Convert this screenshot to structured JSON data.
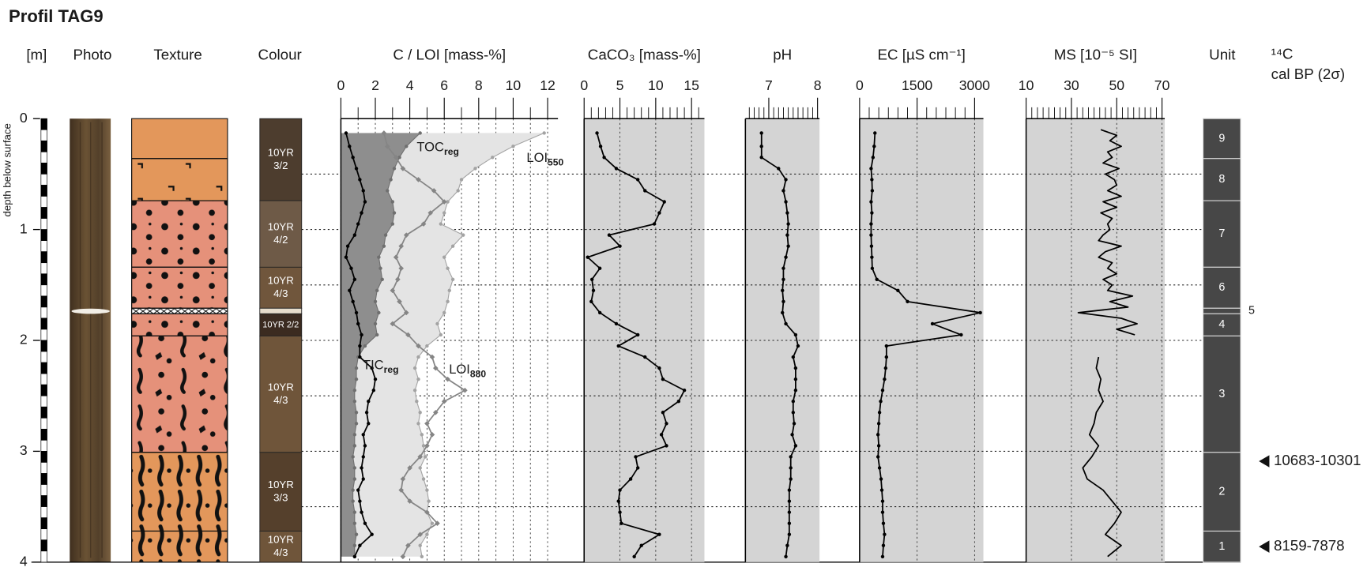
{
  "title": "Profil TAG9",
  "depth_axis": {
    "label": "[m]",
    "axis_label": "depth below surface",
    "ylim": [
      0,
      4
    ],
    "yticks": [
      0,
      1,
      2,
      3,
      4
    ],
    "minor_yticks": [
      0.5,
      1.5,
      2.5,
      3.5
    ]
  },
  "photo": {
    "label": "Photo"
  },
  "texture": {
    "label": "Texture",
    "layers": [
      {
        "top": 0,
        "bottom": 0.36,
        "color": "#e3975b"
      },
      {
        "top": 0.36,
        "bottom": 0.74,
        "color": "#e3975b",
        "pattern": "hooks"
      },
      {
        "top": 0.74,
        "bottom": 1.34,
        "color": "#e5917a",
        "pattern": "dots"
      },
      {
        "top": 1.34,
        "bottom": 1.71,
        "color": "#e5917a",
        "pattern": "dots"
      },
      {
        "top": 1.71,
        "bottom": 1.76,
        "color": "#ffffff",
        "pattern": "hatch"
      },
      {
        "top": 1.76,
        "bottom": 1.96,
        "color": "#e5917a",
        "pattern": "dots"
      },
      {
        "top": 1.96,
        "bottom": 3.01,
        "color": "#e5917a",
        "pattern": "mixed"
      },
      {
        "top": 3.01,
        "bottom": 3.72,
        "color": "#e3975b",
        "pattern": "streaks"
      },
      {
        "top": 3.72,
        "bottom": 4,
        "color": "#e3975b",
        "pattern": "streaks"
      }
    ]
  },
  "colour": {
    "label": "Colour",
    "layers": [
      {
        "top": 0,
        "bottom": 0.74,
        "color": "#4d3d2e",
        "label": [
          "10YR",
          "3/2"
        ]
      },
      {
        "top": 0.74,
        "bottom": 1.34,
        "color": "#6e5a47",
        "label": [
          "10YR",
          "4/2"
        ]
      },
      {
        "top": 1.34,
        "bottom": 1.71,
        "color": "#70563c",
        "label": [
          "10YR",
          "4/3"
        ]
      },
      {
        "top": 1.71,
        "bottom": 1.76,
        "color": "#e6dccb"
      },
      {
        "top": 1.76,
        "bottom": 1.96,
        "color": "#3b2b20",
        "label": [
          "10YR 2/2"
        ]
      },
      {
        "top": 1.96,
        "bottom": 3.01,
        "color": "#6f553a",
        "label": [
          "10YR",
          "4/3"
        ]
      },
      {
        "top": 3.01,
        "bottom": 3.72,
        "color": "#55402c",
        "label": [
          "10YR",
          "3/3"
        ]
      },
      {
        "top": 3.72,
        "bottom": 4,
        "color": "#6f553a",
        "label": [
          "10YR",
          "4/3"
        ]
      }
    ]
  },
  "chart_data": [
    {
      "type": "line",
      "title": "C / LOI [mass-%]",
      "xlim": [
        0,
        12.6
      ],
      "xticks": [
        0,
        2,
        4,
        6,
        8,
        10,
        12
      ],
      "minor_xticks": [
        1,
        3,
        5,
        7,
        9,
        11
      ],
      "grid": true,
      "minor_grid": true,
      "depth": [
        0.13,
        0.25,
        0.35,
        0.45,
        0.55,
        0.65,
        0.75,
        0.85,
        0.95,
        1.05,
        1.15,
        1.25,
        1.35,
        1.45,
        1.55,
        1.65,
        1.75,
        1.85,
        1.95,
        2.05,
        2.15,
        2.25,
        2.35,
        2.45,
        2.55,
        2.65,
        2.75,
        2.85,
        2.95,
        3.05,
        3.15,
        3.25,
        3.35,
        3.45,
        3.55,
        3.65,
        3.75,
        3.85,
        3.95
      ],
      "series": [
        {
          "name": "LOI",
          "subscript": "550",
          "style": "area",
          "color": "#a3a3a3",
          "fill": "#e4e4e4",
          "values": [
            11.8,
            10.0,
            8.8,
            7.8,
            7.0,
            6.8,
            6.2,
            6.0,
            5.8,
            7.1,
            6.5,
            6.0,
            6.2,
            6.5,
            6.3,
            6.2,
            6.0,
            5.6,
            5.8,
            5.0,
            4.5,
            4.3,
            4.5,
            4.3,
            4.4,
            4.6,
            4.5,
            4.7,
            4.8,
            4.9,
            4.6,
            4.8,
            5.0,
            5.1,
            5.0,
            5.3,
            5.0,
            4.6,
            4.7
          ]
        },
        {
          "name": "TOC",
          "subscript": "reg",
          "style": "area",
          "color": "#6f6f6f",
          "fill": "#8e8e8e",
          "values": [
            4.6,
            3.8,
            3.4,
            3.1,
            2.9,
            2.7,
            3.0,
            3.1,
            3.0,
            2.6,
            2.5,
            2.2,
            2.3,
            2.4,
            2.1,
            2.0,
            2.2,
            2.0,
            2.1,
            1.4,
            1.0,
            0.9,
            0.9,
            0.8,
            0.8,
            0.9,
            0.9,
            0.8,
            0.8,
            0.7,
            0.8,
            0.8,
            0.7,
            0.7,
            0.8,
            0.8,
            0.9,
            0.8,
            0.8
          ]
        },
        {
          "name": "LOI",
          "subscript": "880",
          "style": "line",
          "marker": "diamond",
          "color": "#858585",
          "values": [
            2.5,
            2.7,
            3.2,
            3.6,
            4.5,
            5.4,
            6.0,
            5.2,
            4.8,
            3.8,
            3.5,
            3.2,
            3.5,
            3.3,
            3.0,
            3.4,
            3.8,
            3.0,
            3.9,
            4.5,
            5.3,
            5.5,
            6.2,
            7.2,
            6.0,
            5.5,
            5.0,
            5.3,
            5.0,
            4.6,
            4.0,
            3.6,
            3.5,
            4.0,
            5.0,
            5.6,
            4.6,
            3.9,
            3.6
          ]
        },
        {
          "name": "TIC",
          "subscript": "reg",
          "style": "line",
          "color": "#000000",
          "values": [
            0.3,
            0.5,
            0.7,
            0.9,
            1.1,
            1.3,
            1.4,
            1.2,
            1.0,
            0.8,
            0.4,
            0.3,
            0.6,
            0.8,
            0.5,
            0.7,
            0.9,
            1.0,
            1.2,
            1.1,
            1.1,
            1.8,
            2.0,
            1.9,
            1.6,
            1.5,
            1.6,
            1.3,
            1.4,
            1.3,
            1.2,
            1.3,
            1.0,
            1.1,
            1.2,
            1.4,
            1.8,
            1.1,
            0.8
          ]
        }
      ]
    },
    {
      "type": "line",
      "title": "CaCO₃ [mass-%]",
      "xlim": [
        0,
        16.8
      ],
      "xticks": [
        0,
        5,
        10,
        15
      ],
      "minor_xticks": [
        1,
        2,
        3,
        4,
        6,
        7,
        8,
        9,
        11,
        12,
        13,
        14,
        16
      ],
      "grid": true,
      "background": "#d4d4d4",
      "color": "#000000",
      "depth": [
        0.13,
        0.25,
        0.35,
        0.45,
        0.55,
        0.65,
        0.75,
        0.85,
        0.95,
        1.05,
        1.15,
        1.25,
        1.35,
        1.45,
        1.55,
        1.65,
        1.75,
        1.85,
        1.95,
        2.05,
        2.15,
        2.25,
        2.35,
        2.45,
        2.55,
        2.65,
        2.75,
        2.85,
        2.95,
        3.05,
        3.15,
        3.25,
        3.35,
        3.45,
        3.55,
        3.65,
        3.75,
        3.85,
        3.95
      ],
      "values": [
        1.8,
        2.3,
        2.8,
        4.5,
        7.5,
        8.5,
        11.2,
        10.5,
        9.8,
        3.5,
        5.0,
        0.5,
        2.2,
        1.1,
        1.3,
        1.0,
        2.2,
        4.5,
        7.5,
        4.8,
        8.5,
        10.5,
        11.0,
        14.0,
        13.2,
        11.0,
        11.5,
        10.8,
        11.5,
        7.2,
        7.5,
        6.5,
        5.0,
        4.8,
        5.0,
        5.2,
        10.5,
        8.0,
        7.0
      ]
    },
    {
      "type": "line",
      "title": "pH",
      "xlim": [
        6.52,
        8.04
      ],
      "xticks": [
        7,
        8
      ],
      "minor_xticks": [
        6.6,
        6.7,
        6.8,
        6.9,
        7.1,
        7.2,
        7.3,
        7.4,
        7.5,
        7.6,
        7.7,
        7.8,
        7.9
      ],
      "grid": false,
      "background": "#d4d4d4",
      "color": "#000000",
      "depth": [
        0.13,
        0.25,
        0.35,
        0.45,
        0.55,
        0.65,
        0.75,
        0.85,
        0.95,
        1.05,
        1.15,
        1.25,
        1.35,
        1.45,
        1.55,
        1.65,
        1.75,
        1.85,
        1.95,
        2.05,
        2.15,
        2.25,
        2.35,
        2.45,
        2.55,
        2.65,
        2.75,
        2.85,
        2.95,
        3.05,
        3.15,
        3.25,
        3.35,
        3.45,
        3.55,
        3.65,
        3.75,
        3.85,
        3.95
      ],
      "values": [
        6.85,
        6.85,
        6.85,
        7.2,
        7.35,
        7.3,
        7.35,
        7.38,
        7.4,
        7.38,
        7.4,
        7.35,
        7.3,
        7.3,
        7.28,
        7.3,
        7.28,
        7.35,
        7.55,
        7.6,
        7.5,
        7.55,
        7.55,
        7.55,
        7.5,
        7.5,
        7.52,
        7.48,
        7.55,
        7.45,
        7.45,
        7.45,
        7.42,
        7.42,
        7.42,
        7.42,
        7.42,
        7.38,
        7.35
      ]
    },
    {
      "type": "line",
      "title": "EC [µS cm⁻¹]",
      "xlim": [
        0,
        3230
      ],
      "xticks": [
        0,
        1500,
        3000
      ],
      "minor_xticks": [
        250,
        500,
        750,
        1000,
        1250,
        1750,
        2000,
        2250,
        2500,
        2750
      ],
      "grid": true,
      "background": "#d4d4d4",
      "color": "#000000",
      "depth": [
        0.13,
        0.25,
        0.35,
        0.45,
        0.55,
        0.65,
        0.75,
        0.85,
        0.95,
        1.05,
        1.15,
        1.25,
        1.35,
        1.45,
        1.55,
        1.65,
        1.75,
        1.85,
        1.95,
        2.05,
        2.15,
        2.25,
        2.35,
        2.45,
        2.55,
        2.65,
        2.75,
        2.85,
        2.95,
        3.05,
        3.15,
        3.25,
        3.35,
        3.45,
        3.55,
        3.65,
        3.75,
        3.85,
        3.95
      ],
      "values": [
        400,
        380,
        350,
        300,
        320,
        330,
        300,
        320,
        300,
        300,
        310,
        320,
        330,
        450,
        1000,
        1250,
        3150,
        1900,
        2650,
        700,
        700,
        680,
        650,
        600,
        550,
        520,
        500,
        480,
        500,
        480,
        520,
        560,
        580,
        600,
        600,
        620,
        650,
        620,
        600
      ]
    },
    {
      "type": "line",
      "title": "MS [10⁻⁵ SI]",
      "xlim": [
        10,
        71.2
      ],
      "xticks": [
        10,
        30,
        50,
        70
      ],
      "minor_xticks": [
        12.5,
        15,
        17.5,
        20,
        22.5,
        25,
        27.5,
        32.5,
        35,
        37.5,
        40,
        42.5,
        45,
        47.5,
        52.5,
        55,
        57.5,
        60,
        62.5,
        65,
        67.5
      ],
      "grid": true,
      "background": "#d4d4d4",
      "color": "#000000",
      "markers": false,
      "depth": [
        0.1,
        0.15,
        0.2,
        0.25,
        0.3,
        0.35,
        0.4,
        0.45,
        0.5,
        0.55,
        0.6,
        0.65,
        0.7,
        0.75,
        0.8,
        0.85,
        0.9,
        0.95,
        1,
        1.05,
        1.1,
        1.15,
        1.2,
        1.25,
        1.3,
        1.35,
        1.4,
        1.45,
        1.5,
        1.55,
        1.6,
        1.65,
        1.7,
        1.75,
        1.8,
        1.85,
        1.9,
        1.95,
        2.05,
        2.15,
        2.25,
        2.35,
        2.45,
        2.55,
        2.65,
        2.75,
        2.85,
        2.95,
        3.05,
        3.15,
        3.25,
        3.35,
        3.45,
        3.55,
        3.65,
        3.75,
        3.85,
        3.95
      ],
      "values": [
        43,
        50,
        47,
        52,
        46,
        48,
        44,
        51,
        45,
        49,
        50,
        46,
        52,
        44,
        50,
        43,
        48,
        46,
        47,
        44,
        42,
        52,
        45,
        42,
        48,
        46,
        50,
        44,
        48,
        46,
        57,
        47,
        55,
        33,
        52,
        59,
        50,
        58,
        null,
        42,
        41,
        43,
        42,
        44,
        41,
        40,
        38,
        42,
        39,
        35,
        37,
        44,
        48,
        52,
        49,
        45,
        52,
        46
      ]
    }
  ],
  "unit": {
    "label": "Unit",
    "units": [
      {
        "name": "9",
        "top": 0,
        "bottom": 0.36
      },
      {
        "name": "8",
        "top": 0.36,
        "bottom": 0.74
      },
      {
        "name": "7",
        "top": 0.74,
        "bottom": 1.34
      },
      {
        "name": "6",
        "top": 1.34,
        "bottom": 1.71
      },
      {
        "name": "5",
        "top": 1.71,
        "bottom": 1.76
      },
      {
        "name": "4",
        "top": 1.76,
        "bottom": 1.96
      },
      {
        "name": "3",
        "top": 1.96,
        "bottom": 3.01
      },
      {
        "name": "2",
        "top": 3.01,
        "bottom": 3.72
      },
      {
        "name": "1",
        "top": 3.72,
        "bottom": 4
      }
    ]
  },
  "radiocarbon": {
    "label": "¹⁴C",
    "sublabel": "cal BP (2σ)",
    "dates": [
      {
        "depth": 3.09,
        "label": "10683-10301"
      },
      {
        "depth": 3.86,
        "label": "8159-7878"
      }
    ]
  }
}
